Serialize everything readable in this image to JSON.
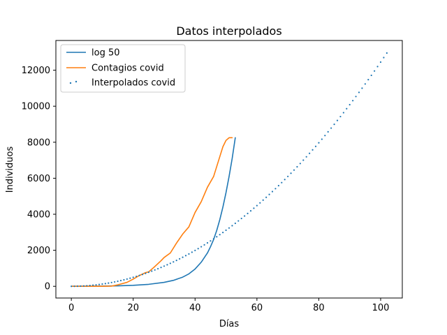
{
  "chart_data": {
    "type": "line",
    "title": "Datos interpolados",
    "xlabel": "Días",
    "ylabel": "Individuos",
    "xlim": [
      -5,
      107
    ],
    "ylim": [
      -650,
      13650
    ],
    "x_ticks": [
      0,
      20,
      40,
      60,
      80,
      100
    ],
    "y_ticks": [
      0,
      2000,
      4000,
      6000,
      8000,
      10000,
      12000
    ],
    "grid": false,
    "legend_position": "upper-left",
    "series": [
      {
        "name": "log 50",
        "style": "line",
        "color": "#1f77b4",
        "x": [
          0,
          5,
          10,
          15,
          20,
          25,
          30,
          33,
          36,
          38,
          40,
          42,
          44,
          45,
          46,
          47,
          48,
          49,
          50,
          51,
          52,
          53
        ],
        "y": [
          0,
          5,
          12,
          25,
          55,
          110,
          220,
          330,
          510,
          690,
          960,
          1340,
          1850,
          2200,
          2600,
          3100,
          3700,
          4400,
          5200,
          6100,
          7100,
          8250
        ]
      },
      {
        "name": "Contagios covid",
        "style": "line",
        "color": "#ff7f0e",
        "x": [
          0,
          5,
          10,
          13,
          15,
          18,
          20,
          22,
          24,
          25,
          27,
          29,
          30,
          32,
          34,
          36,
          38,
          40,
          42,
          44,
          46,
          48,
          49,
          50,
          51,
          52
        ],
        "y": [
          0,
          0,
          0,
          10,
          80,
          220,
          400,
          600,
          760,
          800,
          1100,
          1420,
          1600,
          1850,
          2400,
          2900,
          3300,
          4100,
          4700,
          5500,
          6100,
          7200,
          7750,
          8100,
          8250,
          8250
        ]
      },
      {
        "name": "Interpolados covid",
        "style": "scatter",
        "color": "#1f77b4",
        "x_start": 0,
        "x_end": 102,
        "x_step": 1,
        "poly_coefficients": [
          1.245,
          0.0
        ]
      }
    ]
  }
}
